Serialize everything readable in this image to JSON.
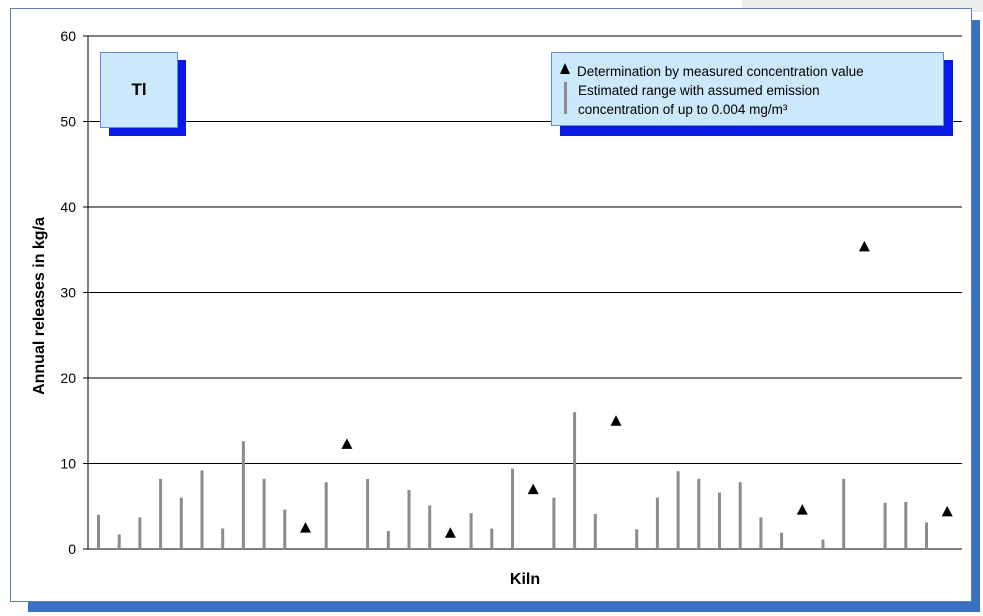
{
  "chart_data": {
    "type": "scatter",
    "title": "Tl",
    "xlabel": "Kiln",
    "ylabel": "Annual releases in kg/a",
    "ylim": [
      0,
      60
    ],
    "yticks": [
      0,
      10,
      20,
      30,
      40,
      50,
      60
    ],
    "grid": "horizontal",
    "legend_position": "top-right",
    "n_kilns": 42,
    "series": [
      {
        "name": "Determination by measured concentration value",
        "marker": "triangle",
        "color": "#000000",
        "points": [
          {
            "kiln": 11,
            "value": 2.5
          },
          {
            "kiln": 13,
            "value": 12.3
          },
          {
            "kiln": 18,
            "value": 1.9
          },
          {
            "kiln": 22,
            "value": 7.0
          },
          {
            "kiln": 26,
            "value": 15.0
          },
          {
            "kiln": 35,
            "value": 4.6
          },
          {
            "kiln": 38,
            "value": 35.4
          },
          {
            "kiln": 42,
            "value": 4.4
          }
        ]
      },
      {
        "name": "Estimated range with assumed emission\nconcentration of up to 0.004 mg/m³",
        "marker": "vertical-bar",
        "color": "#8c8c8c",
        "points": [
          {
            "kiln": 1,
            "value": 4.0
          },
          {
            "kiln": 2,
            "value": 1.7
          },
          {
            "kiln": 3,
            "value": 3.7
          },
          {
            "kiln": 4,
            "value": 8.2
          },
          {
            "kiln": 5,
            "value": 6.0
          },
          {
            "kiln": 6,
            "value": 9.2
          },
          {
            "kiln": 7,
            "value": 2.4
          },
          {
            "kiln": 8,
            "value": 12.6
          },
          {
            "kiln": 9,
            "value": 8.2
          },
          {
            "kiln": 10,
            "value": 4.6
          },
          {
            "kiln": 12,
            "value": 7.8
          },
          {
            "kiln": 14,
            "value": 8.2
          },
          {
            "kiln": 15,
            "value": 2.1
          },
          {
            "kiln": 16,
            "value": 6.9
          },
          {
            "kiln": 17,
            "value": 5.1
          },
          {
            "kiln": 19,
            "value": 4.2
          },
          {
            "kiln": 20,
            "value": 2.4
          },
          {
            "kiln": 21,
            "value": 9.4
          },
          {
            "kiln": 23,
            "value": 6.0
          },
          {
            "kiln": 24,
            "value": 16.0
          },
          {
            "kiln": 25,
            "value": 4.1
          },
          {
            "kiln": 27,
            "value": 2.3
          },
          {
            "kiln": 28,
            "value": 6.0
          },
          {
            "kiln": 29,
            "value": 9.1
          },
          {
            "kiln": 30,
            "value": 8.2
          },
          {
            "kiln": 31,
            "value": 6.6
          },
          {
            "kiln": 32,
            "value": 7.8
          },
          {
            "kiln": 33,
            "value": 3.7
          },
          {
            "kiln": 34,
            "value": 1.9
          },
          {
            "kiln": 36,
            "value": 1.1
          },
          {
            "kiln": 37,
            "value": 8.2
          },
          {
            "kiln": 39,
            "value": 5.4
          },
          {
            "kiln": 40,
            "value": 5.5
          },
          {
            "kiln": 41,
            "value": 3.1
          }
        ]
      }
    ]
  },
  "colors": {
    "frame_shadow": "#3a6fc6",
    "box_fill": "#cce8fb",
    "box_shadow": "#0a1ae6",
    "range_bar": "#8c8c8c",
    "marker": "#000000"
  }
}
